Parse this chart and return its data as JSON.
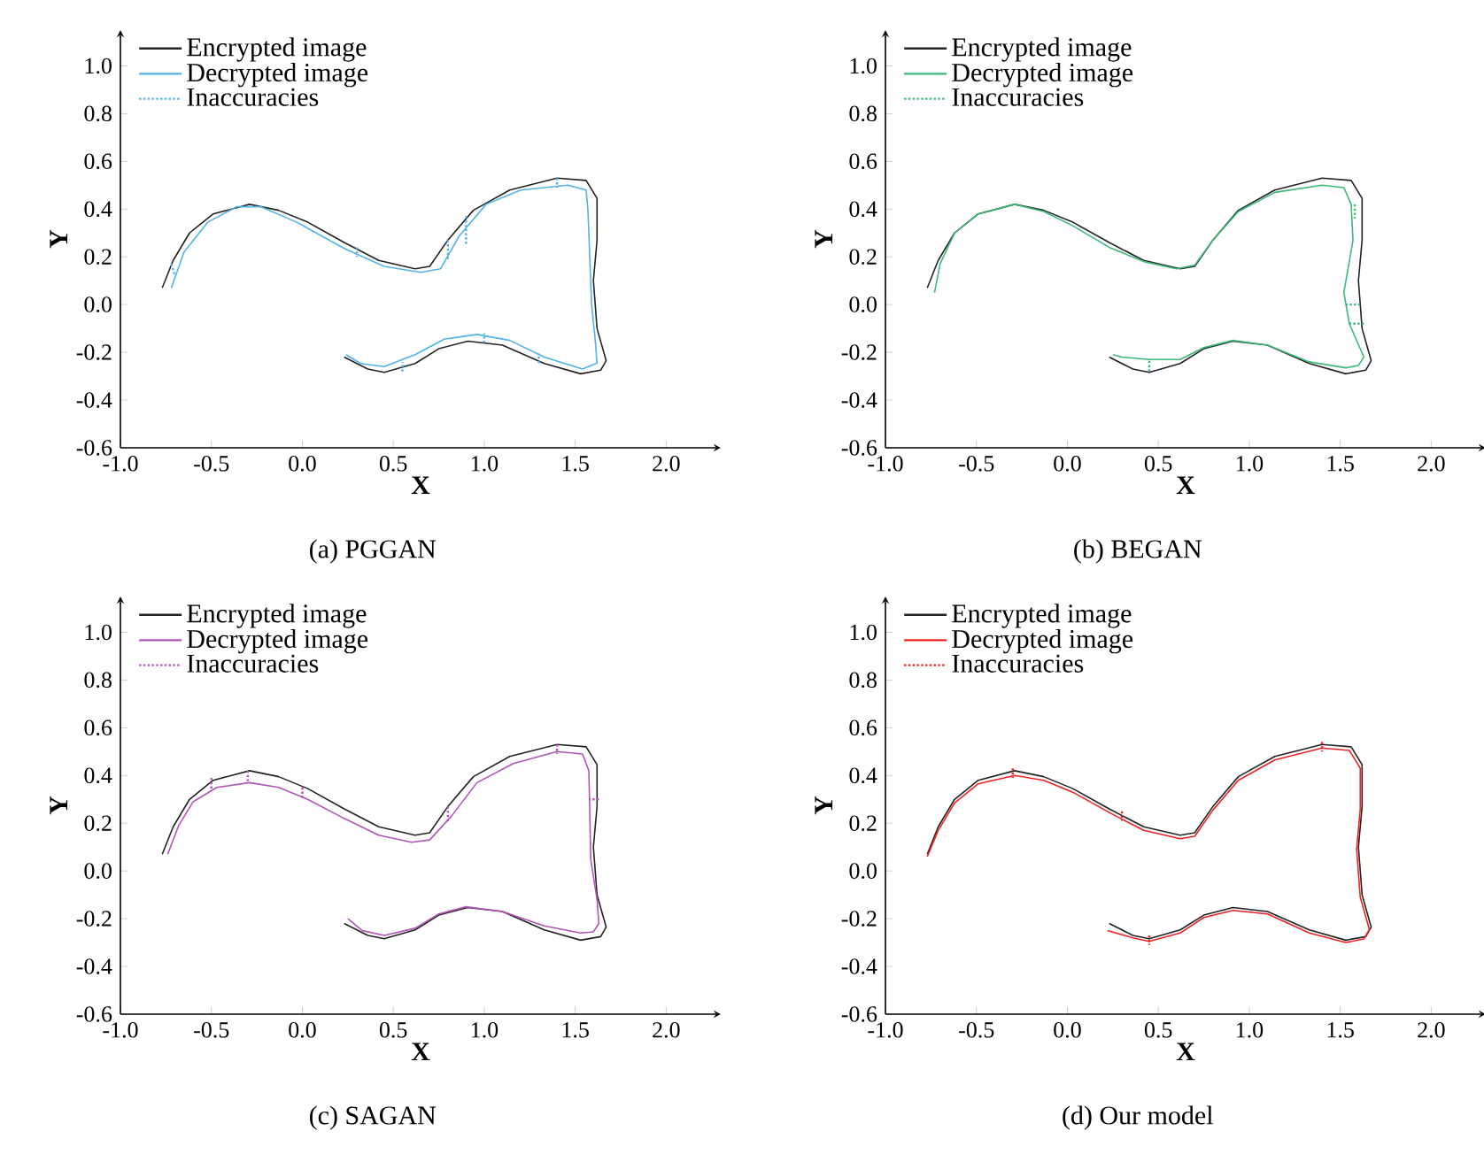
{
  "chart_data": [
    {
      "type": "line",
      "title": "(a) PGGAN",
      "xlabel": "X",
      "ylabel": "Y",
      "xlim": [
        -1.0,
        2.3
      ],
      "ylim": [
        -0.6,
        1.15
      ],
      "xticks": [
        {
          "value": -1,
          "label": "-1.0"
        },
        {
          "value": -0.5,
          "label": "-0.5"
        },
        {
          "value": 0,
          "label": "0.0"
        },
        {
          "value": 0.5,
          "label": "0.5"
        },
        {
          "value": 1,
          "label": "1.0"
        },
        {
          "value": 1.5,
          "label": "1.5"
        },
        {
          "value": 2,
          "label": "2.0"
        }
      ],
      "yticks": [
        {
          "value": -0.6,
          "label": "-0.6"
        },
        {
          "value": -0.4,
          "label": "-0.4"
        },
        {
          "value": -0.2,
          "label": "-0.2"
        },
        {
          "value": 0,
          "label": "0.0"
        },
        {
          "value": 0.2,
          "label": "0.2"
        },
        {
          "value": 0.4,
          "label": "0.4"
        },
        {
          "value": 0.6,
          "label": "0.6"
        },
        {
          "value": 0.8,
          "label": "0.8"
        },
        {
          "value": 1,
          "label": "1.0"
        }
      ],
      "legend": "top left",
      "series": [
        {
          "name": "Encrypted image",
          "color": "#222222",
          "line_style": "solid",
          "x": [
            -0.77,
            -0.71,
            -0.62,
            -0.49,
            -0.29,
            -0.13,
            0.03,
            0.23,
            0.42,
            0.62,
            0.7,
            0.8,
            0.94,
            1.14,
            1.4,
            1.56,
            1.62,
            1.62,
            1.6,
            1.62,
            1.67,
            1.64,
            1.53,
            1.33,
            1.1,
            0.91,
            0.75,
            0.62,
            0.45,
            0.36,
            0.23
          ],
          "values": [
            0.07,
            0.185,
            0.3,
            0.38,
            0.42,
            0.395,
            0.345,
            0.26,
            0.185,
            0.15,
            0.16,
            0.27,
            0.395,
            0.48,
            0.53,
            0.52,
            0.445,
            0.27,
            0.1,
            -0.1,
            -0.235,
            -0.275,
            -0.29,
            -0.247,
            -0.17,
            -0.153,
            -0.185,
            -0.247,
            -0.284,
            -0.27,
            -0.22
          ]
        },
        {
          "name": "Decrypted image",
          "color": "#4fb3e8",
          "line_style": "solid",
          "x": [
            -0.72,
            -0.65,
            -0.52,
            -0.36,
            -0.23,
            -0.03,
            0.23,
            0.45,
            0.65,
            0.76,
            0.86,
            1.01,
            1.2,
            1.46,
            1.56,
            1.57,
            1.58,
            1.59,
            1.61,
            1.62,
            1.54,
            1.33,
            1.14,
            0.96,
            0.78,
            0.62,
            0.45,
            0.32,
            0.24
          ],
          "values": [
            0.07,
            0.22,
            0.345,
            0.41,
            0.41,
            0.345,
            0.235,
            0.16,
            0.135,
            0.15,
            0.285,
            0.42,
            0.48,
            0.5,
            0.48,
            0.395,
            0.2,
            0.0,
            -0.15,
            -0.245,
            -0.27,
            -0.22,
            -0.15,
            -0.125,
            -0.145,
            -0.21,
            -0.26,
            -0.247,
            -0.21
          ]
        },
        {
          "name": "Inaccuracies",
          "color": "#4fb3e8",
          "line_style": "dotted",
          "x": [
            -0.72,
            -0.7,
            null,
            0.3,
            0.3,
            null,
            0.8,
            0.8,
            null,
            0.9,
            0.9,
            null,
            1.4,
            1.4,
            null,
            1.0,
            1.0,
            null,
            1.3,
            1.3,
            null,
            0.55,
            0.55
          ],
          "values": [
            0.17,
            0.12,
            null,
            0.24,
            0.2,
            null,
            0.27,
            0.19,
            null,
            0.37,
            0.25,
            null,
            0.53,
            0.49,
            null,
            -0.16,
            -0.12,
            null,
            -0.245,
            -0.205,
            null,
            -0.28,
            -0.24
          ]
        }
      ]
    },
    {
      "type": "line",
      "title": "(b) BEGAN",
      "xlabel": "X",
      "ylabel": "Y",
      "xlim": [
        -1.0,
        2.3
      ],
      "ylim": [
        -0.6,
        1.15
      ],
      "xticks": [
        {
          "value": -1,
          "label": "-1.0"
        },
        {
          "value": -0.5,
          "label": "-0.5"
        },
        {
          "value": 0,
          "label": "0.0"
        },
        {
          "value": 0.5,
          "label": "0.5"
        },
        {
          "value": 1,
          "label": "1.0"
        },
        {
          "value": 1.5,
          "label": "1.5"
        },
        {
          "value": 2,
          "label": "2.0"
        }
      ],
      "yticks": [
        {
          "value": -0.6,
          "label": "-0.6"
        },
        {
          "value": -0.4,
          "label": "-0.4"
        },
        {
          "value": -0.2,
          "label": "-0.2"
        },
        {
          "value": 0,
          "label": "0.0"
        },
        {
          "value": 0.2,
          "label": "0.2"
        },
        {
          "value": 0.4,
          "label": "0.4"
        },
        {
          "value": 0.6,
          "label": "0.6"
        },
        {
          "value": 0.8,
          "label": "0.8"
        },
        {
          "value": 1,
          "label": "1.0"
        }
      ],
      "legend": "top left",
      "series": [
        {
          "name": "Encrypted image",
          "color": "#222222",
          "line_style": "solid",
          "x": [
            -0.77,
            -0.71,
            -0.62,
            -0.49,
            -0.29,
            -0.13,
            0.03,
            0.23,
            0.42,
            0.62,
            0.7,
            0.8,
            0.94,
            1.14,
            1.4,
            1.56,
            1.62,
            1.62,
            1.6,
            1.62,
            1.67,
            1.64,
            1.53,
            1.33,
            1.1,
            0.91,
            0.75,
            0.62,
            0.45,
            0.36,
            0.23
          ],
          "values": [
            0.07,
            0.185,
            0.3,
            0.38,
            0.42,
            0.395,
            0.345,
            0.26,
            0.185,
            0.15,
            0.16,
            0.27,
            0.395,
            0.48,
            0.53,
            0.52,
            0.445,
            0.27,
            0.1,
            -0.1,
            -0.235,
            -0.275,
            -0.29,
            -0.247,
            -0.17,
            -0.153,
            -0.185,
            -0.247,
            -0.284,
            -0.27,
            -0.22
          ]
        },
        {
          "name": "Decrypted image",
          "color": "#3cb878",
          "line_style": "solid",
          "x": [
            -0.73,
            -0.7,
            -0.62,
            -0.49,
            -0.29,
            -0.13,
            0.03,
            0.23,
            0.42,
            0.6,
            0.7,
            0.8,
            0.94,
            1.14,
            1.4,
            1.52,
            1.56,
            1.57,
            1.52,
            1.55,
            1.63,
            1.6,
            1.53,
            1.33,
            1.1,
            0.91,
            0.75,
            0.62,
            0.45,
            0.3,
            0.25
          ],
          "values": [
            0.05,
            0.17,
            0.3,
            0.38,
            0.42,
            0.39,
            0.33,
            0.24,
            0.18,
            0.15,
            0.165,
            0.27,
            0.39,
            0.47,
            0.5,
            0.49,
            0.42,
            0.27,
            0.05,
            -0.08,
            -0.22,
            -0.255,
            -0.265,
            -0.24,
            -0.17,
            -0.15,
            -0.18,
            -0.23,
            -0.23,
            -0.22,
            -0.21
          ]
        },
        {
          "name": "Inaccuracies",
          "color": "#3cb878",
          "line_style": "dotted",
          "x": [
            1.61,
            1.53,
            null,
            1.63,
            1.55,
            null,
            0.45,
            0.45,
            null,
            1.58,
            1.58
          ],
          "values": [
            0.0,
            0.0,
            null,
            -0.08,
            -0.08,
            null,
            -0.28,
            -0.23,
            null,
            0.42,
            0.36
          ]
        }
      ]
    },
    {
      "type": "line",
      "title": "(c) SAGAN",
      "xlabel": "X",
      "ylabel": "Y",
      "xlim": [
        -1.0,
        2.3
      ],
      "ylim": [
        -0.6,
        1.15
      ],
      "xticks": [
        {
          "value": -1,
          "label": "-1.0"
        },
        {
          "value": -0.5,
          "label": "-0.5"
        },
        {
          "value": 0,
          "label": "0.0"
        },
        {
          "value": 0.5,
          "label": "0.5"
        },
        {
          "value": 1,
          "label": "1.0"
        },
        {
          "value": 1.5,
          "label": "1.5"
        },
        {
          "value": 2,
          "label": "2.0"
        }
      ],
      "yticks": [
        {
          "value": -0.6,
          "label": "-0.6"
        },
        {
          "value": -0.4,
          "label": "-0.4"
        },
        {
          "value": -0.2,
          "label": "-0.2"
        },
        {
          "value": 0,
          "label": "0.0"
        },
        {
          "value": 0.2,
          "label": "0.2"
        },
        {
          "value": 0.4,
          "label": "0.4"
        },
        {
          "value": 0.6,
          "label": "0.6"
        },
        {
          "value": 0.8,
          "label": "0.8"
        },
        {
          "value": 1,
          "label": "1.0"
        }
      ],
      "legend": "top left",
      "series": [
        {
          "name": "Encrypted image",
          "color": "#222222",
          "line_style": "solid",
          "x": [
            -0.77,
            -0.71,
            -0.62,
            -0.49,
            -0.29,
            -0.13,
            0.03,
            0.23,
            0.42,
            0.62,
            0.7,
            0.8,
            0.94,
            1.14,
            1.4,
            1.56,
            1.62,
            1.62,
            1.6,
            1.62,
            1.67,
            1.64,
            1.53,
            1.33,
            1.1,
            0.91,
            0.75,
            0.62,
            0.45,
            0.36,
            0.23
          ],
          "values": [
            0.07,
            0.185,
            0.3,
            0.38,
            0.42,
            0.395,
            0.345,
            0.26,
            0.185,
            0.15,
            0.16,
            0.27,
            0.395,
            0.48,
            0.53,
            0.52,
            0.445,
            0.27,
            0.1,
            -0.1,
            -0.235,
            -0.275,
            -0.29,
            -0.247,
            -0.17,
            -0.153,
            -0.185,
            -0.247,
            -0.284,
            -0.27,
            -0.22
          ]
        },
        {
          "name": "Decrypted image",
          "color": "#b054b8",
          "line_style": "solid",
          "x": [
            -0.74,
            -0.68,
            -0.6,
            -0.47,
            -0.29,
            -0.13,
            0.03,
            0.23,
            0.42,
            0.6,
            0.7,
            0.82,
            0.96,
            1.16,
            1.4,
            1.54,
            1.575,
            1.58,
            1.585,
            1.62,
            1.63,
            1.6,
            1.53,
            1.33,
            1.1,
            0.9,
            0.75,
            0.62,
            0.45,
            0.33,
            0.25
          ],
          "values": [
            0.07,
            0.19,
            0.29,
            0.35,
            0.37,
            0.35,
            0.3,
            0.22,
            0.15,
            0.12,
            0.13,
            0.23,
            0.37,
            0.45,
            0.5,
            0.49,
            0.42,
            0.25,
            0.05,
            -0.12,
            -0.22,
            -0.255,
            -0.26,
            -0.23,
            -0.17,
            -0.15,
            -0.18,
            -0.24,
            -0.27,
            -0.25,
            -0.2
          ]
        },
        {
          "name": "Inaccuracies",
          "color": "#b054b8",
          "line_style": "dotted",
          "x": [
            -0.5,
            -0.5,
            null,
            -0.3,
            -0.3,
            null,
            0.0,
            0.0,
            null,
            0.8,
            0.8,
            null,
            1.4,
            1.4,
            null,
            1.63,
            1.575
          ],
          "values": [
            0.39,
            0.34,
            null,
            0.42,
            0.37,
            null,
            0.35,
            0.3,
            null,
            0.27,
            0.2,
            null,
            0.53,
            0.49,
            null,
            0.3,
            0.3
          ]
        }
      ]
    },
    {
      "type": "line",
      "title": "(d) Our model",
      "xlabel": "X",
      "ylabel": "Y",
      "xlim": [
        -1.0,
        2.3
      ],
      "ylim": [
        -0.6,
        1.15
      ],
      "xticks": [
        {
          "value": -1,
          "label": "-1.0"
        },
        {
          "value": -0.5,
          "label": "-0.5"
        },
        {
          "value": 0,
          "label": "0.0"
        },
        {
          "value": 0.5,
          "label": "0.5"
        },
        {
          "value": 1,
          "label": "1.0"
        },
        {
          "value": 1.5,
          "label": "1.5"
        },
        {
          "value": 2,
          "label": "2.0"
        }
      ],
      "yticks": [
        {
          "value": -0.6,
          "label": "-0.6"
        },
        {
          "value": -0.4,
          "label": "-0.4"
        },
        {
          "value": -0.2,
          "label": "-0.2"
        },
        {
          "value": 0,
          "label": "0.0"
        },
        {
          "value": 0.2,
          "label": "0.2"
        },
        {
          "value": 0.4,
          "label": "0.4"
        },
        {
          "value": 0.6,
          "label": "0.6"
        },
        {
          "value": 0.8,
          "label": "0.8"
        },
        {
          "value": 1,
          "label": "1.0"
        }
      ],
      "legend": "top left",
      "series": [
        {
          "name": "Encrypted image",
          "color": "#222222",
          "line_style": "solid",
          "x": [
            -0.77,
            -0.71,
            -0.62,
            -0.49,
            -0.29,
            -0.13,
            0.03,
            0.23,
            0.42,
            0.62,
            0.7,
            0.8,
            0.94,
            1.14,
            1.4,
            1.56,
            1.62,
            1.62,
            1.6,
            1.62,
            1.67,
            1.64,
            1.53,
            1.33,
            1.1,
            0.91,
            0.75,
            0.62,
            0.45,
            0.36,
            0.23
          ],
          "values": [
            0.07,
            0.185,
            0.3,
            0.38,
            0.42,
            0.395,
            0.345,
            0.26,
            0.185,
            0.15,
            0.16,
            0.27,
            0.395,
            0.48,
            0.53,
            0.52,
            0.445,
            0.27,
            0.1,
            -0.1,
            -0.235,
            -0.275,
            -0.29,
            -0.247,
            -0.17,
            -0.153,
            -0.185,
            -0.247,
            -0.284,
            -0.27,
            -0.22
          ]
        },
        {
          "name": "Decrypted image",
          "color": "#ee2222",
          "line_style": "solid",
          "x": [
            -0.77,
            -0.71,
            -0.62,
            -0.49,
            -0.29,
            -0.13,
            0.03,
            0.23,
            0.42,
            0.62,
            0.7,
            0.8,
            0.94,
            1.14,
            1.4,
            1.55,
            1.61,
            1.61,
            1.59,
            1.61,
            1.66,
            1.63,
            1.53,
            1.33,
            1.1,
            0.91,
            0.75,
            0.62,
            0.45,
            0.36,
            0.22
          ],
          "values": [
            0.06,
            0.17,
            0.285,
            0.365,
            0.4,
            0.38,
            0.33,
            0.245,
            0.17,
            0.135,
            0.145,
            0.255,
            0.38,
            0.465,
            0.515,
            0.505,
            0.43,
            0.26,
            0.09,
            -0.11,
            -0.245,
            -0.285,
            -0.3,
            -0.26,
            -0.18,
            -0.165,
            -0.195,
            -0.26,
            -0.295,
            -0.28,
            -0.25
          ]
        },
        {
          "name": "Inaccuracies",
          "color": "#ee2222",
          "line_style": "dotted",
          "x": [
            -0.3,
            -0.3,
            null,
            0.3,
            0.3,
            null,
            1.4,
            1.4,
            null,
            0.45,
            0.45
          ],
          "values": [
            0.43,
            0.39,
            null,
            0.25,
            0.21,
            null,
            0.54,
            0.5,
            null,
            -0.27,
            -0.31
          ]
        }
      ]
    }
  ]
}
